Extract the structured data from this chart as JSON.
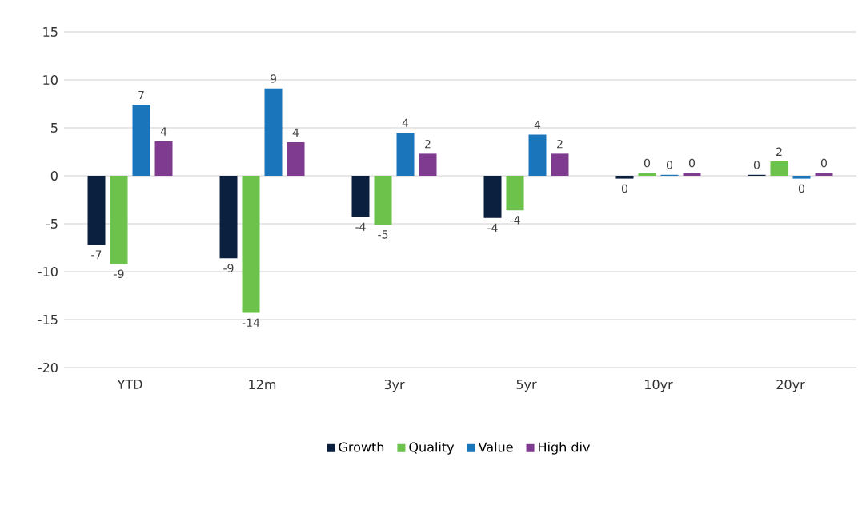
{
  "chart_data": {
    "type": "bar",
    "categories": [
      "YTD",
      "12m",
      "3yr",
      "5yr",
      "10yr",
      "20yr"
    ],
    "series": [
      {
        "name": "Growth",
        "color": "#0b1f3f",
        "values": [
          -7.2,
          -8.6,
          -4.3,
          -4.4,
          -0.3,
          0.1
        ],
        "value_labels": [
          "-7",
          "-9",
          "-4",
          "-4",
          "0",
          "0"
        ]
      },
      {
        "name": "Quality",
        "color": "#6cc24a",
        "values": [
          -9.2,
          -14.3,
          -5.1,
          -3.6,
          0.3,
          1.5
        ],
        "value_labels": [
          "-9",
          "-14",
          "-5",
          "-4",
          "0",
          "2"
        ]
      },
      {
        "name": "Value",
        "color": "#1a75bb",
        "values": [
          7.4,
          9.1,
          4.5,
          4.3,
          0.1,
          -0.3
        ],
        "value_labels": [
          "7",
          "9",
          "4",
          "4",
          "0",
          "0"
        ]
      },
      {
        "name": "High div",
        "color": "#7e3b8f",
        "values": [
          3.6,
          3.5,
          2.3,
          2.3,
          0.3,
          0.3
        ],
        "value_labels": [
          "4",
          "4",
          "2",
          "2",
          "0",
          "0"
        ]
      }
    ],
    "ylim": [
      -20,
      15
    ],
    "yticks": [
      -20,
      -15,
      -10,
      -5,
      0,
      5,
      10,
      15
    ],
    "grid": "y",
    "legend": "bottom"
  }
}
